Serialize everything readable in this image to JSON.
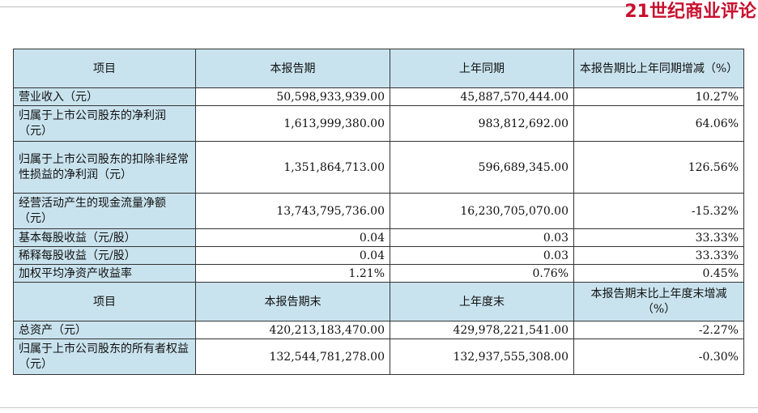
{
  "watermark": "21世纪商业评论",
  "header1": {
    "item": "项目",
    "current": "本报告期",
    "prior": "上年同期",
    "change": "本报告期比上年同期增减（%）"
  },
  "rows1": [
    {
      "label": "营业收入（元）",
      "current": "50,598,933,939.00",
      "prior": "45,887,570,444.00",
      "change": "10.27%"
    },
    {
      "label": "归属于上市公司股东的净利润（元）",
      "current": "1,613,999,380.00",
      "prior": "983,812,692.00",
      "change": "64.06%"
    },
    {
      "label": "归属于上市公司股东的扣除非经常性损益的净利润（元）",
      "current": "1,351,864,713.00",
      "prior": "596,689,345.00",
      "change": "126.56%"
    },
    {
      "label": "经营活动产生的现金流量净额（元）",
      "current": "13,743,795,736.00",
      "prior": "16,230,705,070.00",
      "change": "-15.32%"
    },
    {
      "label": "基本每股收益（元/股）",
      "current": "0.04",
      "prior": "0.03",
      "change": "33.33%"
    },
    {
      "label": "稀释每股收益（元/股）",
      "current": "0.04",
      "prior": "0.03",
      "change": "33.33%"
    },
    {
      "label": "加权平均净资产收益率",
      "current": "1.21%",
      "prior": "0.76%",
      "change": "0.45%"
    }
  ],
  "header2": {
    "item": "项目",
    "current": "本报告期末",
    "prior": "上年度末",
    "change": "本报告期末比上年度末增减（%）"
  },
  "rows2": [
    {
      "label": "总资产（元）",
      "current": "420,213,183,470.00",
      "prior": "429,978,221,541.00",
      "change": "-2.27%"
    },
    {
      "label": "归属于上市公司股东的所有者权益（元）",
      "current": "132,544,781,278.00",
      "prior": "132,937,555,308.00",
      "change": "-0.30%"
    }
  ]
}
